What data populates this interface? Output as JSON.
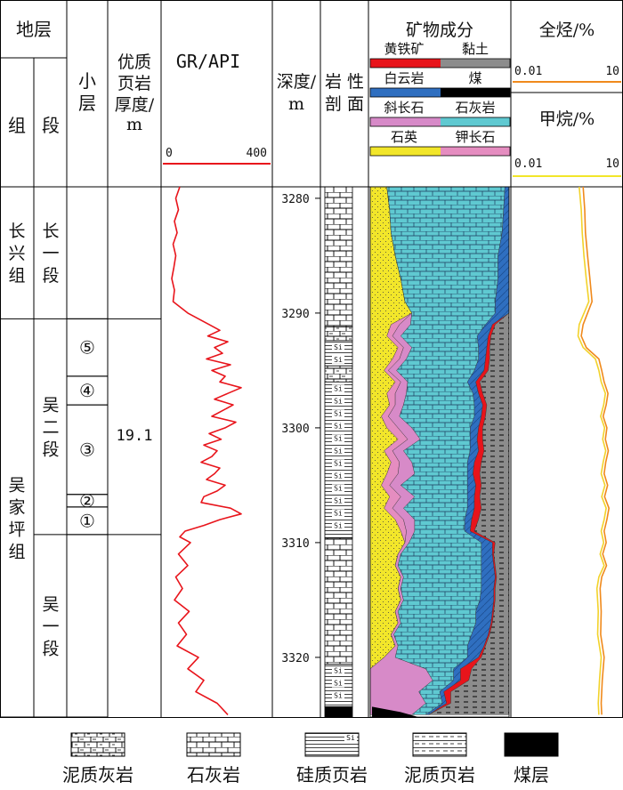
{
  "header": {
    "formation": "地层",
    "group": "组",
    "member": "段",
    "sublayer": "小层",
    "shale_thickness": [
      "优质",
      "页岩",
      "厚度/",
      "m"
    ],
    "gr_title": "GR/API",
    "gr_range": {
      "min": "0",
      "max": "400"
    },
    "depth_title": [
      "深度/",
      "m"
    ],
    "lithology_title": [
      "岩 性",
      "剖 面"
    ],
    "mineral_title": "矿物成分",
    "minerals": [
      {
        "name": "黄铁矿",
        "color": "#e8141b"
      },
      {
        "name": "黏土",
        "color": "#8c8c8c"
      },
      {
        "name": "白云岩",
        "color": "#2f6fc0"
      },
      {
        "name": "煤",
        "color": "#000000"
      },
      {
        "name": "斜长石",
        "color": "#d78ac8"
      },
      {
        "name": "石灰岩",
        "color": "#5fc9d1"
      },
      {
        "name": "石英",
        "color": "#f2e62a"
      },
      {
        "name": "钾长石",
        "color": "#e58dc0"
      }
    ],
    "total_hc_title": "全烃/%",
    "total_hc_range": {
      "min": "0.01",
      "max": "10"
    },
    "methane_title": "甲烷/%",
    "methane_range": {
      "min": "0.01",
      "max": "10"
    }
  },
  "strata": {
    "groups": [
      {
        "name": "长兴组",
        "top": 3279,
        "bottom": 3290.5
      },
      {
        "name": "吴家坪组",
        "top": 3290.5,
        "bottom": 3325.2
      }
    ],
    "members": [
      {
        "name": "长一段",
        "top": 3279,
        "bottom": 3290.5
      },
      {
        "name": "吴二段",
        "top": 3290.5,
        "bottom": 3309.3
      },
      {
        "name": "吴一段",
        "top": 3309.3,
        "bottom": 3325.2
      }
    ],
    "sublayers": [
      {
        "label": "⑤",
        "top": 3290.5,
        "bottom": 3295.5
      },
      {
        "label": "④",
        "top": 3295.5,
        "bottom": 3298.0
      },
      {
        "label": "③",
        "top": 3298.0,
        "bottom": 3305.8
      },
      {
        "label": "②",
        "top": 3305.8,
        "bottom": 3306.9
      },
      {
        "label": "①",
        "top": 3306.9,
        "bottom": 3309.3
      }
    ],
    "shale_thickness": {
      "value": "19.1",
      "top": 3290.5,
      "bottom": 3309.3
    }
  },
  "chart_data": {
    "type": "well-log",
    "depth_ticks": [
      "3280",
      "3290",
      "3300",
      "3310",
      "3320"
    ],
    "depth_range": [
      3279,
      3325.2
    ],
    "gr": {
      "range": [
        0,
        400
      ],
      "depth": [
        3279,
        3280,
        3281,
        3282,
        3283,
        3284,
        3285,
        3286,
        3287,
        3288,
        3289,
        3290,
        3291,
        3291.5,
        3292,
        3292.5,
        3293,
        3293.5,
        3294,
        3294.5,
        3295,
        3295.5,
        3296,
        3296.5,
        3297,
        3297.5,
        3298,
        3298.5,
        3299,
        3299.5,
        3300,
        3300.5,
        3301,
        3301.5,
        3302,
        3302.5,
        3303,
        3303.5,
        3304,
        3304.5,
        3305,
        3305.5,
        3306,
        3306.5,
        3307,
        3307.5,
        3308,
        3308.5,
        3309,
        3309.5,
        3310,
        3311,
        3312,
        3313,
        3314,
        3315,
        3316,
        3317,
        3318,
        3319,
        3320,
        3321,
        3322,
        3323,
        3324,
        3325
      ],
      "values": [
        60,
        45,
        55,
        40,
        50,
        35,
        45,
        38,
        30,
        40,
        35,
        90,
        170,
        210,
        165,
        240,
        190,
        220,
        160,
        250,
        180,
        230,
        210,
        290,
        240,
        190,
        260,
        220,
        180,
        270,
        230,
        170,
        215,
        150,
        200,
        180,
        140,
        210,
        190,
        160,
        230,
        200,
        150,
        140,
        250,
        290,
        210,
        150,
        80,
        60,
        100,
        55,
        90,
        45,
        70,
        40,
        95,
        55,
        85,
        50,
        130,
        90,
        150,
        120,
        200,
        240
      ]
    },
    "total_hydrocarbon": {
      "range_log": [
        0.01,
        10
      ],
      "depth": [
        3279,
        3281,
        3283,
        3285,
        3287,
        3289,
        3291,
        3292,
        3293,
        3294,
        3295,
        3296,
        3297,
        3298,
        3299,
        3300,
        3301,
        3302,
        3303,
        3304,
        3305,
        3306,
        3307,
        3308,
        3309,
        3310,
        3311,
        3312,
        3313,
        3314,
        3316,
        3318,
        3320,
        3322,
        3324,
        3325
      ],
      "values": [
        0.9,
        1.0,
        1.05,
        1.2,
        1.4,
        1.6,
        0.9,
        0.8,
        1.1,
        2.5,
        3.0,
        3.5,
        4.5,
        4.0,
        3.3,
        4.2,
        3.8,
        4.6,
        3.9,
        3.5,
        4.4,
        3.6,
        4.8,
        4.2,
        3.5,
        4.0,
        3.2,
        4.1,
        3.0,
        2.7,
        2.9,
        2.8,
        3.5,
        3.1,
        2.9,
        3.0
      ]
    },
    "methane": {
      "range_log": [
        0.01,
        10
      ],
      "depth": [
        3279,
        3281,
        3283,
        3285,
        3287,
        3289,
        3291,
        3292,
        3293,
        3294,
        3295,
        3296,
        3297,
        3298,
        3299,
        3300,
        3301,
        3302,
        3303,
        3304,
        3305,
        3306,
        3307,
        3308,
        3309,
        3310,
        3311,
        3312,
        3313,
        3314,
        3316,
        3318,
        3320,
        3322,
        3324,
        3325
      ],
      "values": [
        0.7,
        0.8,
        0.85,
        0.95,
        1.1,
        1.3,
        0.7,
        0.65,
        0.9,
        2.0,
        2.5,
        2.9,
        3.8,
        3.4,
        2.8,
        3.6,
        3.2,
        3.9,
        3.3,
        2.9,
        3.7,
        3.0,
        4.0,
        3.5,
        2.9,
        3.4,
        2.7,
        3.5,
        2.5,
        2.2,
        2.4,
        2.3,
        2.9,
        2.6,
        2.4,
        2.5
      ]
    },
    "mineral_composition": {
      "depth": [
        3279,
        3281,
        3283,
        3285,
        3287,
        3289,
        3290,
        3291,
        3292,
        3293,
        3294,
        3295,
        3296,
        3297,
        3298,
        3299,
        3300,
        3301,
        3302,
        3303,
        3304,
        3305,
        3306,
        3307,
        3308,
        3309,
        3310,
        3311,
        3312,
        3313,
        3314,
        3315,
        3316,
        3317,
        3318,
        3319,
        3320,
        3321,
        3322,
        3323,
        3324,
        3325
      ],
      "order": [
        "quartz",
        "k_feldspar",
        "plagioclase",
        "limestone",
        "dolomite",
        "pyrite",
        "clay"
      ],
      "quartz": [
        12,
        14,
        15,
        18,
        22,
        25,
        30,
        15,
        12,
        20,
        16,
        10,
        18,
        12,
        14,
        8,
        12,
        20,
        10,
        15,
        12,
        8,
        14,
        10,
        18,
        22,
        25,
        20,
        18,
        22,
        20,
        22,
        18,
        20,
        15,
        18,
        10,
        0,
        0,
        0,
        0,
        0
      ],
      "k_feldspar": [
        0,
        0,
        0,
        0,
        0,
        0,
        0,
        6,
        4,
        4,
        5,
        3,
        4,
        6,
        4,
        5,
        8,
        7,
        6,
        6,
        8,
        6,
        8,
        6,
        6,
        4,
        0,
        0,
        0,
        0,
        0,
        0,
        0,
        0,
        0,
        0,
        0,
        0,
        0,
        0,
        0,
        0
      ],
      "plagioclase": [
        0,
        0,
        0,
        0,
        0,
        0,
        0,
        8,
        6,
        6,
        5,
        6,
        5,
        8,
        6,
        8,
        10,
        9,
        8,
        9,
        12,
        8,
        10,
        8,
        8,
        6,
        3,
        2,
        2,
        2,
        2,
        2,
        2,
        2,
        2,
        2,
        8,
        40,
        45,
        35,
        40,
        30
      ],
      "limestone": [
        85,
        82,
        80,
        74,
        70,
        65,
        60,
        54,
        55,
        48,
        52,
        56,
        43,
        48,
        51,
        54,
        42,
        36,
        48,
        40,
        38,
        48,
        38,
        46,
        36,
        36,
        52,
        58,
        60,
        56,
        58,
        55,
        56,
        54,
        56,
        50,
        52,
        20,
        15,
        15,
        12,
        10
      ],
      "dolomite": [
        3,
        4,
        5,
        8,
        8,
        10,
        10,
        5,
        8,
        6,
        5,
        7,
        6,
        4,
        6,
        5,
        6,
        5,
        6,
        5,
        4,
        6,
        5,
        5,
        5,
        4,
        8,
        8,
        9,
        10,
        9,
        10,
        12,
        11,
        12,
        12,
        8,
        5,
        5,
        3,
        3,
        2
      ],
      "pyrite": [
        0,
        0,
        0,
        0,
        0,
        0,
        0,
        2,
        2,
        2,
        3,
        3,
        3,
        3,
        3,
        3,
        3,
        4,
        4,
        5,
        5,
        4,
        4,
        5,
        5,
        3,
        2,
        1,
        1,
        1,
        1,
        1,
        1,
        1,
        1,
        1,
        2,
        8,
        6,
        5,
        3,
        0
      ],
      "clay": [
        0,
        0,
        0,
        0,
        0,
        0,
        0,
        10,
        13,
        14,
        14,
        15,
        21,
        19,
        16,
        17,
        19,
        19,
        18,
        20,
        21,
        20,
        21,
        20,
        22,
        25,
        10,
        11,
        10,
        9,
        10,
        10,
        11,
        12,
        14,
        17,
        20,
        27,
        29,
        42,
        42,
        58
      ]
    },
    "coal_seam": {
      "top": 3324.3,
      "bottom": 3325.2
    },
    "lithology": [
      {
        "type": "limestone",
        "top": 3279,
        "bottom": 3291.2
      },
      {
        "type": "muddy-limestone",
        "top": 3291.2,
        "bottom": 3292.4
      },
      {
        "type": "siliceous-shale",
        "top": 3292.4,
        "bottom": 3294.6
      },
      {
        "type": "muddy-limestone",
        "top": 3294.6,
        "bottom": 3296.0
      },
      {
        "type": "siliceous-shale",
        "top": 3296.0,
        "bottom": 3309.6
      },
      {
        "type": "limestone",
        "top": 3309.6,
        "bottom": 3320.6
      },
      {
        "type": "siliceous-shale",
        "top": 3320.6,
        "bottom": 3324.3
      },
      {
        "type": "coal",
        "top": 3324.3,
        "bottom": 3325.2
      }
    ],
    "si_label": "Si"
  },
  "legend": [
    {
      "pattern": "muddy-limestone",
      "label": "泥质灰岩"
    },
    {
      "pattern": "limestone",
      "label": "石灰岩"
    },
    {
      "pattern": "siliceous-shale",
      "label": "硅质页岩",
      "tag": "Si"
    },
    {
      "pattern": "muddy-shale",
      "label": "泥质页岩"
    },
    {
      "pattern": "coal",
      "label": "煤层"
    }
  ]
}
